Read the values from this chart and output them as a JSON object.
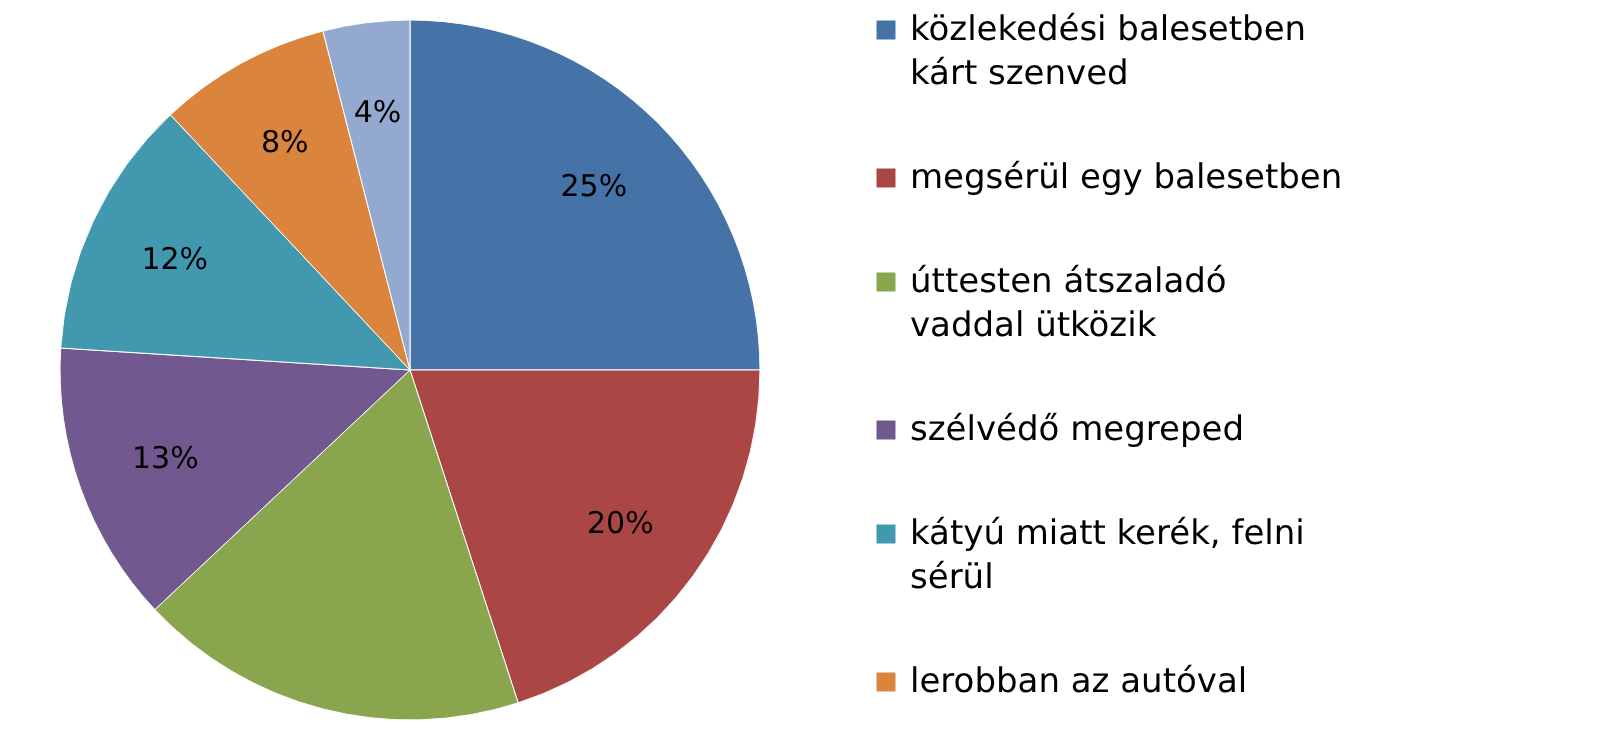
{
  "chart_data": {
    "type": "pie",
    "categories": [
      "közlekedési balesetben kárt szenved",
      "megsérül egy balesetben",
      "úttesten átszaladó vaddal ütközik",
      "szélvédő megreped",
      "kátyú miatt kerék, felni sérül",
      "lerobban az autóval",
      null
    ],
    "values": [
      25,
      20,
      18,
      13,
      12,
      8,
      4
    ],
    "colors": [
      "#4572a7",
      "#aa4643",
      "#89a54e",
      "#71588f",
      "#4198af",
      "#db843d",
      "#93a9cf"
    ],
    "value_labels": [
      "25%",
      "20%",
      null,
      "13%",
      "12%",
      "8%",
      "4%"
    ],
    "legend": "right"
  }
}
